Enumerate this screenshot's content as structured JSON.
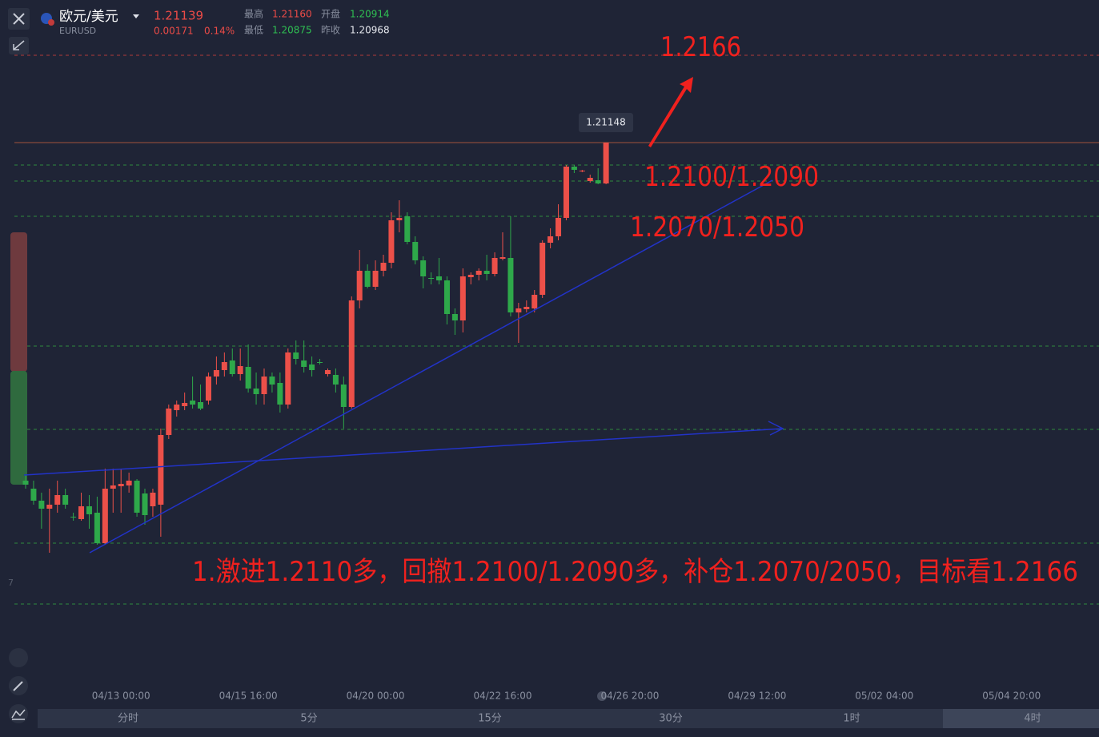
{
  "header": {
    "name": "欧元/美元",
    "code": "EURUSD",
    "price": "1.21139",
    "change": "0.00171",
    "change_pct": "0.14%",
    "stats": [
      {
        "label": "最高",
        "value": "1.21160"
      },
      {
        "label": "开盘",
        "value": "1.20914"
      },
      {
        "label": "最低",
        "value": "1.20875"
      },
      {
        "label": "昨收",
        "value": "1.20968"
      }
    ]
  },
  "chart_data": {
    "type": "candlestick",
    "up_color": "#ec5049",
    "down_color": "#2ea84a",
    "ylim": [
      1.18,
      1.22
    ],
    "xlim": [
      0,
      135
    ],
    "xticks": [
      {
        "value": 12,
        "label": "04/13 00:00"
      },
      {
        "value": 28,
        "label": "04/15 16:00"
      },
      {
        "value": 44,
        "label": "04/20 00:00"
      },
      {
        "value": 60,
        "label": "04/22 16:00"
      },
      {
        "value": 76,
        "label": "04/26 20:00"
      },
      {
        "value": 92,
        "label": "04/29 12:00"
      },
      {
        "value": 108,
        "label": "05/02 04:00"
      },
      {
        "value": 124,
        "label": "05/04 20:00"
      }
    ],
    "ohlc": [
      [
        1.1904,
        1.1908,
        1.1899,
        1.19015
      ],
      [
        1.1899,
        1.1904,
        1.1889,
        1.18915
      ],
      [
        1.18915,
        1.18965,
        1.1874,
        1.18865
      ],
      [
        1.18865,
        1.1899,
        1.1859,
        1.1889
      ],
      [
        1.1889,
        1.1904,
        1.1884,
        1.1895
      ],
      [
        1.1895,
        1.1899,
        1.18865,
        1.1889
      ],
      [
        1.18815,
        1.1884,
        1.1879,
        1.1881
      ],
      [
        1.188,
        1.18965,
        1.1879,
        1.1888
      ],
      [
        1.1888,
        1.1895,
        1.1874,
        1.1883
      ],
      [
        1.1884,
        1.1894,
        1.1864,
        1.1865
      ],
      [
        1.1865,
        1.19115,
        1.1864,
        1.1899
      ],
      [
        1.1899,
        1.19115,
        1.1884,
        1.1901
      ],
      [
        1.19005,
        1.19115,
        1.1884,
        1.1902
      ],
      [
        1.1901,
        1.1909,
        1.18965,
        1.1904
      ],
      [
        1.1904,
        1.1905,
        1.18815,
        1.1884
      ],
      [
        1.1896,
        1.1899,
        1.18765,
        1.18825
      ],
      [
        1.1888,
        1.1899,
        1.18815,
        1.18965
      ],
      [
        1.1889,
        1.19365,
        1.1869,
        1.19325
      ],
      [
        1.19325,
        1.19515,
        1.193,
        1.1949
      ],
      [
        1.1948,
        1.1954,
        1.1944,
        1.19515
      ],
      [
        1.19505,
        1.1959,
        1.1948,
        1.19525
      ],
      [
        1.1954,
        1.1969,
        1.1949,
        1.19515
      ],
      [
        1.1953,
        1.1964,
        1.1948,
        1.1949
      ],
      [
        1.1954,
        1.19715,
        1.19515,
        1.1969
      ],
      [
        1.1969,
        1.19815,
        1.1964,
        1.1973
      ],
      [
        1.1973,
        1.1984,
        1.1969,
        1.1978
      ],
      [
        1.1979,
        1.19865,
        1.1969,
        1.19705
      ],
      [
        1.19705,
        1.19865,
        1.19665,
        1.19755
      ],
      [
        1.1975,
        1.1989,
        1.1959,
        1.19615
      ],
      [
        1.19615,
        1.19715,
        1.19515,
        1.1958
      ],
      [
        1.1958,
        1.1974,
        1.19515,
        1.1969
      ],
      [
        1.1969,
        1.19715,
        1.1959,
        1.1964
      ],
      [
        1.1965,
        1.19715,
        1.19465,
        1.19515
      ],
      [
        1.19515,
        1.19865,
        1.1949,
        1.1984
      ],
      [
        1.1984,
        1.19915,
        1.19765,
        1.198
      ],
      [
        1.1979,
        1.19915,
        1.19715,
        1.1975
      ],
      [
        1.19765,
        1.19815,
        1.1969,
        1.1973
      ],
      [
        1.1978,
        1.198,
        1.19765,
        1.19775
      ],
      [
        1.19705,
        1.1974,
        1.1969,
        1.1973
      ],
      [
        1.197,
        1.1974,
        1.1959,
        1.1964
      ],
      [
        1.1964,
        1.1969,
        1.19365,
        1.195
      ],
      [
        1.195,
        1.2019,
        1.1949,
        1.20165
      ],
      [
        1.20165,
        1.2048,
        1.20115,
        1.2035
      ],
      [
        1.2035,
        1.2039,
        1.2024,
        1.2025
      ],
      [
        1.2025,
        1.20415,
        1.2023,
        1.2035
      ],
      [
        1.2035,
        1.2045,
        1.20315,
        1.204
      ],
      [
        1.204,
        1.20715,
        1.20365,
        1.20665
      ],
      [
        1.20665,
        1.2079,
        1.2059,
        1.2068
      ],
      [
        1.2069,
        1.20715,
        1.20515,
        1.2053
      ],
      [
        1.2053,
        1.20565,
        1.2039,
        1.20415
      ],
      [
        1.20415,
        1.2044,
        1.2024,
        1.20315
      ],
      [
        1.20305,
        1.2034,
        1.20265,
        1.203
      ],
      [
        1.20315,
        1.2043,
        1.20265,
        1.2029
      ],
      [
        1.2029,
        1.20315,
        1.20015,
        1.2008
      ],
      [
        1.2008,
        1.20115,
        1.1995,
        1.2004
      ],
      [
        1.2004,
        1.20365,
        1.19965,
        1.20315
      ],
      [
        1.2031,
        1.2034,
        1.20265,
        1.20325
      ],
      [
        1.20325,
        1.20365,
        1.2029,
        1.2035
      ],
      [
        1.2035,
        1.2045,
        1.2029,
        1.2033
      ],
      [
        1.2033,
        1.20465,
        1.20315,
        1.2043
      ],
      [
        1.20425,
        1.2059,
        1.20415,
        1.20435
      ],
      [
        1.2043,
        1.2069,
        1.20065,
        1.2009
      ],
      [
        1.2009,
        1.2015,
        1.199,
        1.20115
      ],
      [
        1.2011,
        1.20165,
        1.2009,
        1.20125
      ],
      [
        1.20115,
        1.2023,
        1.2009,
        1.202
      ],
      [
        1.202,
        1.2054,
        1.2018,
        1.20525
      ],
      [
        1.20525,
        1.20615,
        1.2049,
        1.20565
      ],
      [
        1.20565,
        1.20765,
        1.2054,
        1.2068
      ],
      [
        1.2068,
        1.2101,
        1.20665,
        1.21
      ],
      [
        1.21,
        1.2101,
        1.2096,
        1.2098
      ],
      [
        1.2097,
        1.2098,
        1.20965,
        1.20975
      ],
      [
        1.2091,
        1.2095,
        1.209,
        1.2093
      ],
      [
        1.20915,
        1.2099,
        1.2089,
        1.20895
      ],
      [
        1.20895,
        1.2115,
        1.2089,
        1.2115
      ]
    ],
    "price_tag": "1.21148",
    "annotations": [
      "1.2166",
      "1.2100/1.2090",
      "1.2070/1.2050",
      "1.激进1.2110多，回撤1.2100/1.2090多，补仓1.2070/2050，目标看1.2166"
    ]
  },
  "side_label": "7",
  "tabs": [
    "分时",
    "5分",
    "15分",
    "30分",
    "1时",
    "4时"
  ]
}
